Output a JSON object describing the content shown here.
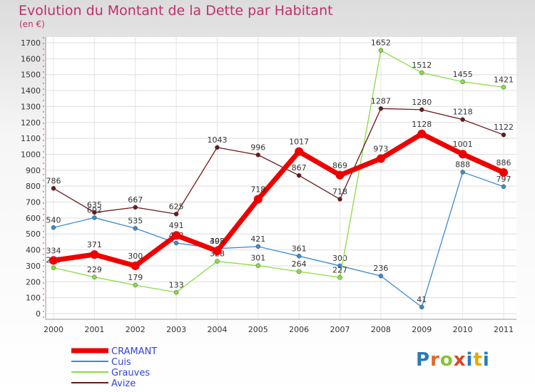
{
  "title": "Evolution du Montant de la Dette par Habitant",
  "unit_label": "(en €)",
  "watermark": {
    "text": "Proxiti",
    "colors": [
      "#2a7ab5",
      "#e0662a",
      "#8ac234",
      "#d9462a",
      "#2a7ab5",
      "#e8a800",
      "#2a7ab5"
    ]
  },
  "chart_data": {
    "type": "line",
    "title": "Evolution du Montant de la Dette par Habitant",
    "subtitle": "(en €)",
    "categories": [
      "2000",
      "2001",
      "2002",
      "2003",
      "2004",
      "2005",
      "2006",
      "2007",
      "2008",
      "2009",
      "2010",
      "2011"
    ],
    "ylim": [
      0,
      1700
    ],
    "yticks": [
      0,
      100,
      200,
      300,
      400,
      500,
      600,
      700,
      800,
      900,
      1000,
      1100,
      1200,
      1300,
      1400,
      1500,
      1600,
      1700
    ],
    "grid": true,
    "legend_position": "bottom-left",
    "series": [
      {
        "name": "CRAMANT",
        "color": "#ee0000",
        "thick": true,
        "values": [
          334,
          371,
          300,
          491,
          393,
          718,
          1017,
          869,
          973,
          1128,
          1001,
          886
        ]
      },
      {
        "name": "Cuis",
        "color": "#3b8bd0",
        "thick": false,
        "values": [
          540,
          602,
          535,
          443,
          408,
          421,
          361,
          300,
          236,
          41,
          888,
          797
        ]
      },
      {
        "name": "Grauves",
        "color": "#88dd44",
        "thick": false,
        "values": [
          288,
          229,
          179,
          133,
          328,
          301,
          264,
          227,
          1652,
          1512,
          1455,
          1421
        ]
      },
      {
        "name": "Avize",
        "color": "#6b1a1a",
        "thick": false,
        "values": [
          786,
          635,
          667,
          625,
          1043,
          996,
          867,
          718,
          1287,
          1280,
          1218,
          1122
        ]
      }
    ]
  }
}
